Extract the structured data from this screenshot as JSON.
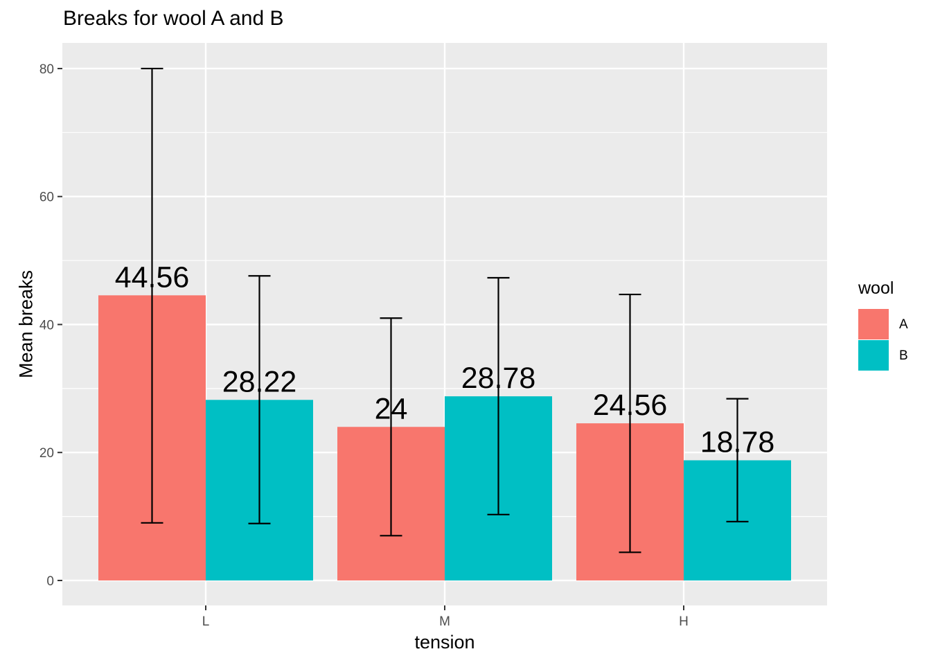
{
  "chart_data": {
    "type": "bar",
    "title": "Breaks for wool A and B",
    "xlabel": "tension",
    "ylabel": "Mean breaks",
    "categories": [
      "L",
      "M",
      "H"
    ],
    "series": [
      {
        "name": "A",
        "color": "#F8766D",
        "values": [
          44.56,
          24,
          24.56
        ],
        "labels": [
          "44.56",
          "24",
          "24.56"
        ],
        "error_low": [
          9,
          7,
          4.4
        ],
        "error_high": [
          80,
          41,
          44.7
        ]
      },
      {
        "name": "B",
        "color": "#00BFC4",
        "values": [
          28.22,
          28.78,
          18.78
        ],
        "labels": [
          "28.22",
          "28.78",
          "18.78"
        ],
        "error_low": [
          8.9,
          10.3,
          9.2
        ],
        "error_high": [
          47.6,
          47.3,
          28.4
        ]
      }
    ],
    "y_ticks": [
      0,
      20,
      40,
      60,
      80
    ],
    "y_tick_labels": [
      "0",
      "20",
      "40",
      "60",
      "80"
    ],
    "ylim": [
      -3.9,
      84
    ],
    "grid": true,
    "panel_background": "#EBEBEB",
    "legend": {
      "title": "wool",
      "placement": "right"
    }
  }
}
